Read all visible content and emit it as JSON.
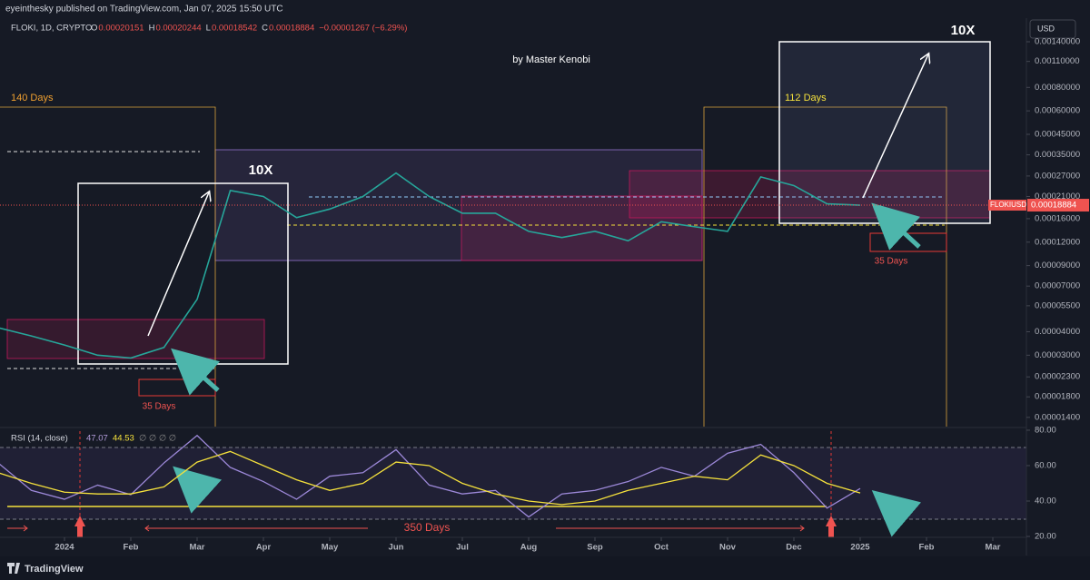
{
  "header": {
    "published": "eyeinthesky published on TradingView.com, Jan 07, 2025 15:50 UTC",
    "symbol": "FLOKI, 1D, CRYPTO",
    "ohlc": [
      "O",
      "0.00020151",
      "H",
      "0.00020244",
      "L",
      "0.00018542",
      "C",
      "0.00018884",
      "−0.00001267 (−6.29%)"
    ],
    "currency": "USD",
    "footer": "TradingView"
  },
  "chart_data": [
    {
      "type": "line",
      "color": "#26a69a",
      "log_scale": true,
      "grid": false,
      "categories": [
        null,
        null,
        "2024",
        null,
        "Feb",
        null,
        "Mar",
        null,
        "Apr",
        null,
        "May",
        null,
        "Jun",
        null,
        "Jul",
        null,
        "Aug",
        null,
        "Sep",
        null,
        "Oct",
        null,
        "Nov",
        null,
        "Dec",
        null,
        "2025",
        null,
        "Feb",
        null,
        "Mar"
      ],
      "values": [
        4.2e-05,
        3.8e-05,
        3.4e-05,
        3e-05,
        2.9e-05,
        3.3e-05,
        5.95e-05,
        0.000226,
        0.00021,
        0.000162,
        0.00018,
        0.00021,
        0.00028,
        0.00021,
        0.000171,
        0.000171,
        0.000137,
        0.000127,
        0.000137,
        0.000122,
        0.000154,
        0.000145,
        0.000137,
        0.000267,
        0.00024,
        0.000192,
        0.00018884,
        null,
        null,
        null,
        null
      ],
      "ylim": [
        1.25e-05,
        0.00187
      ],
      "yticks": [
        {
          "value": 0.0014,
          "label": "0.00140000"
        },
        {
          "value": 0.0011,
          "label": "0.00110000"
        },
        {
          "value": 0.0008,
          "label": "0.00080000"
        },
        {
          "value": 0.0006,
          "label": "0.00060000"
        },
        {
          "value": 0.00045,
          "label": "0.00045000"
        },
        {
          "value": 0.00035,
          "label": "0.00035000"
        },
        {
          "value": 0.00027,
          "label": "0.00027000"
        },
        {
          "value": 0.00021,
          "label": "0.00021000"
        },
        {
          "value": 0.00016,
          "label": "0.00016000"
        },
        {
          "value": 0.00012,
          "label": "0.00012000"
        },
        {
          "value": 9e-05,
          "label": "0.00009000"
        },
        {
          "value": 7e-05,
          "label": "0.00007000"
        },
        {
          "value": 5.5e-05,
          "label": "0.00005500"
        },
        {
          "value": 4e-05,
          "label": "0.00004000"
        },
        {
          "value": 3e-05,
          "label": "0.00003000"
        },
        {
          "value": 2.3e-05,
          "label": "0.00002300"
        },
        {
          "value": 1.8e-05,
          "label": "0.00001800"
        },
        {
          "value": 1.4e-05,
          "label": "0.00001400"
        }
      ],
      "symbol": "FLOKIUSD",
      "last_value": 0.00018884,
      "annotations": [
        "by Master Kenobi",
        "140 Days",
        "10X",
        "35 Days",
        "112 Days",
        "10X",
        "35 Days"
      ]
    },
    {
      "type": "line",
      "title": "RSI (14, close)",
      "readouts": [
        47.07,
        44.53
      ],
      "empty_readouts": "∅ ∅ ∅ ∅",
      "series": [
        {
          "color": "#9c88d8",
          "values": [
            61.5,
            46,
            41,
            49,
            43.6,
            61.5,
            77,
            59,
            51,
            41,
            54,
            56,
            69,
            49,
            44,
            46,
            31,
            44,
            46,
            51,
            59,
            54,
            67,
            72,
            56,
            36,
            47.07,
            null,
            null,
            null,
            null
          ]
        },
        {
          "color": "#f5e13c",
          "values": [
            56,
            50,
            45,
            44,
            44,
            48,
            62,
            68,
            60,
            52,
            46,
            50,
            62,
            60,
            50,
            44,
            40,
            38,
            40,
            46,
            50,
            54,
            52,
            66,
            60,
            50,
            44.53,
            null,
            null,
            null,
            null
          ]
        }
      ],
      "ylim": [
        19.5,
        81
      ],
      "yticks": [
        {
          "value": 80,
          "label": "80.00"
        },
        {
          "value": 60,
          "label": "60.00"
        },
        {
          "value": 40,
          "label": "40.00"
        },
        {
          "value": 20,
          "label": "20.00"
        }
      ],
      "annotations": [
        "350 Days"
      ]
    }
  ]
}
